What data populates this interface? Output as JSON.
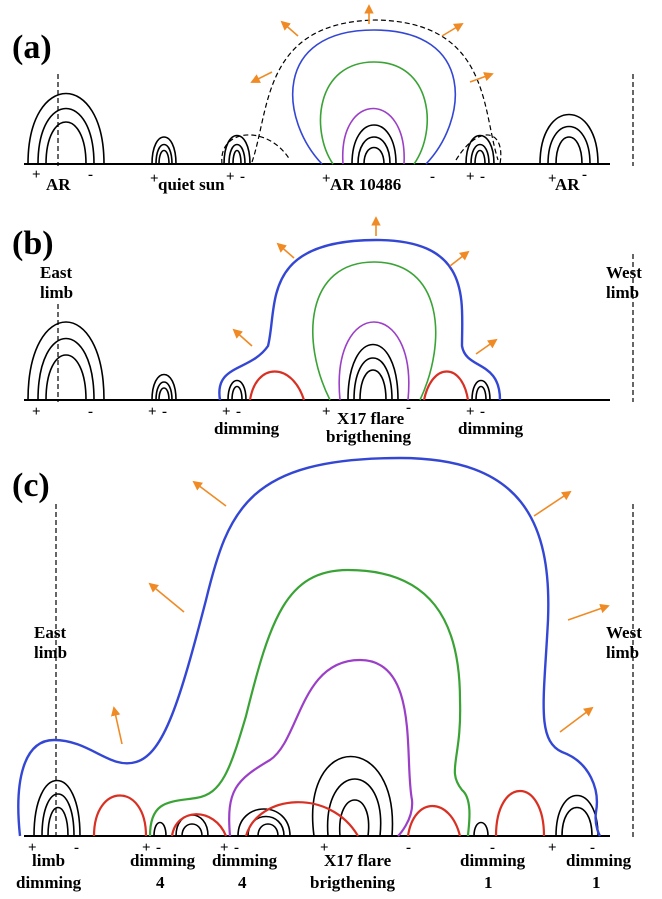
{
  "colors": {
    "blue": "#3347d4",
    "green": "#3aa335",
    "purple": "#9b3fc7",
    "red": "#d93024",
    "black": "#000000",
    "arrow": "#f08a24"
  },
  "panels": {
    "a": {
      "label": "(a)",
      "texts": {
        "ar_left": "AR",
        "quiet_sun": "quiet sun",
        "ar_center": "AR 10486",
        "ar_right": "AR"
      }
    },
    "b": {
      "label": "(b)",
      "texts": {
        "east_limb": "East\nlimb",
        "west_limb": "West\nlimb",
        "dimming_left": "dimming",
        "flare_line1": "X17 flare",
        "flare_line2": "brigthening",
        "dimming_right": "dimming"
      }
    },
    "c": {
      "label": "(c)",
      "texts": {
        "east_limb": "East\nlimb",
        "west_limb": "West\nlimb",
        "limb_dimming_1": "limb",
        "limb_dimming_2": "dimming",
        "dim4a_1": "dimming",
        "dim4a_2": "4",
        "dim4b_1": "dimming",
        "dim4b_2": "4",
        "flare_line1": "X17 flare",
        "flare_line2": "brigthening",
        "dim1a_1": "dimming",
        "dim1a_2": "1",
        "dim1b_1": "dimming",
        "dim1b_2": "1"
      }
    },
    "signs": {
      "plus": "+",
      "minus": "-"
    }
  }
}
